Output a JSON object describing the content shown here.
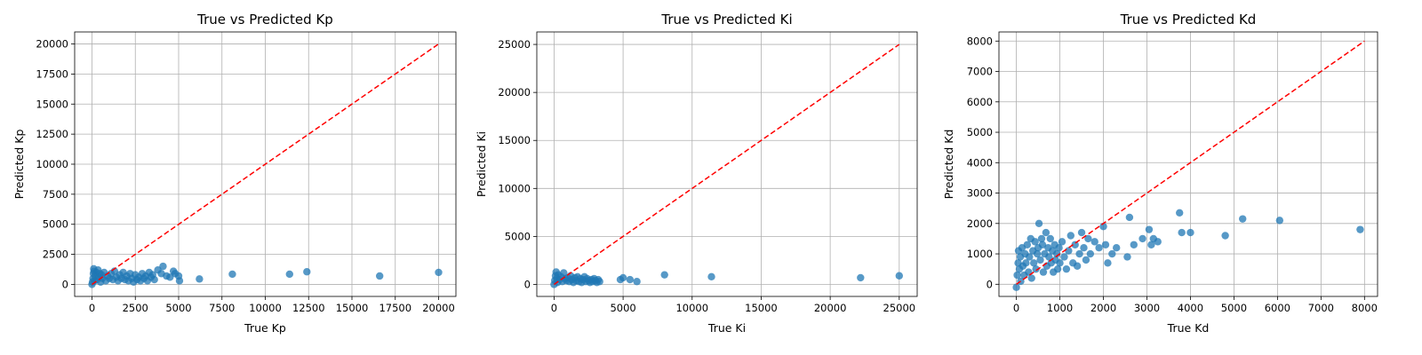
{
  "chart_data": [
    {
      "type": "scatter",
      "title": "True vs Predicted Kp",
      "xlabel": "True Kp",
      "ylabel": "Predicted Kp",
      "xlim": [
        -1000,
        21000
      ],
      "ylim": [
        -1000,
        21000
      ],
      "xticks": [
        0,
        2500,
        5000,
        7500,
        10000,
        12500,
        15000,
        17500,
        20000
      ],
      "yticks": [
        0,
        2500,
        5000,
        7500,
        10000,
        12500,
        15000,
        17500,
        20000
      ],
      "grid": true,
      "point_color": "#1f77b4",
      "reference_line": {
        "from": [
          0,
          0
        ],
        "to": [
          20000,
          20000
        ],
        "color": "#ff0000",
        "style": "dashed"
      },
      "points": [
        [
          0,
          0
        ],
        [
          30,
          200
        ],
        [
          60,
          500
        ],
        [
          80,
          900
        ],
        [
          100,
          1300
        ],
        [
          120,
          1100
        ],
        [
          150,
          300
        ],
        [
          200,
          700
        ],
        [
          250,
          1000
        ],
        [
          300,
          400
        ],
        [
          350,
          1200
        ],
        [
          400,
          600
        ],
        [
          450,
          900
        ],
        [
          500,
          200
        ],
        [
          550,
          800
        ],
        [
          600,
          500
        ],
        [
          700,
          1000
        ],
        [
          800,
          300
        ],
        [
          900,
          700
        ],
        [
          1000,
          500
        ],
        [
          1100,
          900
        ],
        [
          1200,
          400
        ],
        [
          1300,
          1100
        ],
        [
          1400,
          600
        ],
        [
          1500,
          300
        ],
        [
          1600,
          800
        ],
        [
          1700,
          500
        ],
        [
          1800,
          1000
        ],
        [
          1900,
          400
        ],
        [
          2000,
          700
        ],
        [
          2100,
          300
        ],
        [
          2200,
          900
        ],
        [
          2300,
          500
        ],
        [
          2400,
          200
        ],
        [
          2500,
          800
        ],
        [
          2600,
          400
        ],
        [
          2700,
          600
        ],
        [
          2800,
          300
        ],
        [
          2900,
          900
        ],
        [
          3000,
          500
        ],
        [
          3100,
          700
        ],
        [
          3200,
          300
        ],
        [
          3300,
          1000
        ],
        [
          3400,
          600
        ],
        [
          3500,
          800
        ],
        [
          3600,
          400
        ],
        [
          3800,
          1200
        ],
        [
          4000,
          900
        ],
        [
          4100,
          1500
        ],
        [
          4300,
          700
        ],
        [
          4500,
          600
        ],
        [
          4700,
          1100
        ],
        [
          4800,
          900
        ],
        [
          5000,
          700
        ],
        [
          5050,
          300
        ],
        [
          6200,
          450
        ],
        [
          8100,
          850
        ],
        [
          11400,
          850
        ],
        [
          12400,
          1050
        ],
        [
          16600,
          700
        ],
        [
          20000,
          1000
        ]
      ]
    },
    {
      "type": "scatter",
      "title": "True vs Predicted Ki",
      "xlabel": "True Ki",
      "ylabel": "Predicted Ki",
      "xlim": [
        -1250,
        26300
      ],
      "ylim": [
        -1250,
        26300
      ],
      "xticks": [
        0,
        5000,
        10000,
        15000,
        20000,
        25000
      ],
      "yticks": [
        0,
        5000,
        10000,
        15000,
        20000,
        25000
      ],
      "grid": true,
      "point_color": "#1f77b4",
      "reference_line": {
        "from": [
          0,
          0
        ],
        "to": [
          25000,
          25000
        ],
        "color": "#ff0000",
        "style": "dashed"
      },
      "points": [
        [
          0,
          0
        ],
        [
          50,
          400
        ],
        [
          100,
          900
        ],
        [
          150,
          1300
        ],
        [
          200,
          600
        ],
        [
          250,
          200
        ],
        [
          300,
          1000
        ],
        [
          400,
          500
        ],
        [
          500,
          800
        ],
        [
          600,
          300
        ],
        [
          700,
          1200
        ],
        [
          800,
          600
        ],
        [
          900,
          400
        ],
        [
          1000,
          700
        ],
        [
          1100,
          300
        ],
        [
          1200,
          900
        ],
        [
          1300,
          500
        ],
        [
          1400,
          200
        ],
        [
          1500,
          700
        ],
        [
          1600,
          400
        ],
        [
          1700,
          800
        ],
        [
          1800,
          300
        ],
        [
          1900,
          600
        ],
        [
          2000,
          200
        ],
        [
          2100,
          500
        ],
        [
          2200,
          800
        ],
        [
          2300,
          300
        ],
        [
          2400,
          600
        ],
        [
          2500,
          400
        ],
        [
          2600,
          200
        ],
        [
          2700,
          500
        ],
        [
          2800,
          300
        ],
        [
          2900,
          600
        ],
        [
          3000,
          400
        ],
        [
          3100,
          200
        ],
        [
          3200,
          500
        ],
        [
          3300,
          300
        ],
        [
          4800,
          500
        ],
        [
          5000,
          700
        ],
        [
          5500,
          500
        ],
        [
          6000,
          300
        ],
        [
          8000,
          1000
        ],
        [
          11400,
          800
        ],
        [
          22200,
          700
        ],
        [
          25000,
          900
        ]
      ]
    },
    {
      "type": "scatter",
      "title": "True vs Predicted Kd",
      "xlabel": "True Kd",
      "ylabel": "Predicted Kd",
      "xlim": [
        -400,
        8300
      ],
      "ylim": [
        -400,
        8300
      ],
      "xticks": [
        0,
        1000,
        2000,
        3000,
        4000,
        5000,
        6000,
        7000,
        8000
      ],
      "yticks": [
        0,
        1000,
        2000,
        3000,
        4000,
        5000,
        6000,
        7000,
        8000
      ],
      "grid": true,
      "point_color": "#1f77b4",
      "reference_line": {
        "from": [
          0,
          0
        ],
        "to": [
          8000,
          8000
        ],
        "color": "#ff0000",
        "style": "dashed"
      },
      "points": [
        [
          0,
          -100
        ],
        [
          20,
          300
        ],
        [
          40,
          700
        ],
        [
          50,
          1100
        ],
        [
          70,
          500
        ],
        [
          90,
          900
        ],
        [
          100,
          100
        ],
        [
          130,
          1200
        ],
        [
          150,
          600
        ],
        [
          180,
          300
        ],
        [
          200,
          1000
        ],
        [
          220,
          700
        ],
        [
          250,
          1300
        ],
        [
          280,
          400
        ],
        [
          300,
          900
        ],
        [
          330,
          1500
        ],
        [
          350,
          200
        ],
        [
          380,
          1100
        ],
        [
          400,
          700
        ],
        [
          430,
          1400
        ],
        [
          450,
          500
        ],
        [
          480,
          1000
        ],
        [
          500,
          1200
        ],
        [
          520,
          2000
        ],
        [
          550,
          800
        ],
        [
          580,
          1500
        ],
        [
          600,
          1300
        ],
        [
          620,
          400
        ],
        [
          650,
          1000
        ],
        [
          680,
          1700
        ],
        [
          700,
          600
        ],
        [
          730,
          1200
        ],
        [
          750,
          900
        ],
        [
          780,
          1500
        ],
        [
          800,
          700
        ],
        [
          830,
          1100
        ],
        [
          850,
          400
        ],
        [
          880,
          1300
        ],
        [
          900,
          800
        ],
        [
          930,
          1000
        ],
        [
          950,
          500
        ],
        [
          980,
          1200
        ],
        [
          1000,
          700
        ],
        [
          1050,
          1400
        ],
        [
          1100,
          900
        ],
        [
          1150,
          500
        ],
        [
          1200,
          1100
        ],
        [
          1250,
          1600
        ],
        [
          1300,
          700
        ],
        [
          1350,
          1300
        ],
        [
          1400,
          600
        ],
        [
          1450,
          1000
        ],
        [
          1500,
          1700
        ],
        [
          1550,
          1200
        ],
        [
          1600,
          800
        ],
        [
          1650,
          1500
        ],
        [
          1700,
          1000
        ],
        [
          1800,
          1400
        ],
        [
          1900,
          1200
        ],
        [
          2000,
          1900
        ],
        [
          2050,
          1300
        ],
        [
          2100,
          700
        ],
        [
          2200,
          1000
        ],
        [
          2300,
          1200
        ],
        [
          2550,
          900
        ],
        [
          2600,
          2200
        ],
        [
          2700,
          1300
        ],
        [
          2900,
          1500
        ],
        [
          3050,
          1800
        ],
        [
          3100,
          1300
        ],
        [
          3150,
          1500
        ],
        [
          3250,
          1400
        ],
        [
          3750,
          2350
        ],
        [
          3800,
          1700
        ],
        [
          4000,
          1700
        ],
        [
          4800,
          1600
        ],
        [
          5200,
          2150
        ],
        [
          6050,
          2100
        ],
        [
          7900,
          1800
        ]
      ]
    }
  ]
}
